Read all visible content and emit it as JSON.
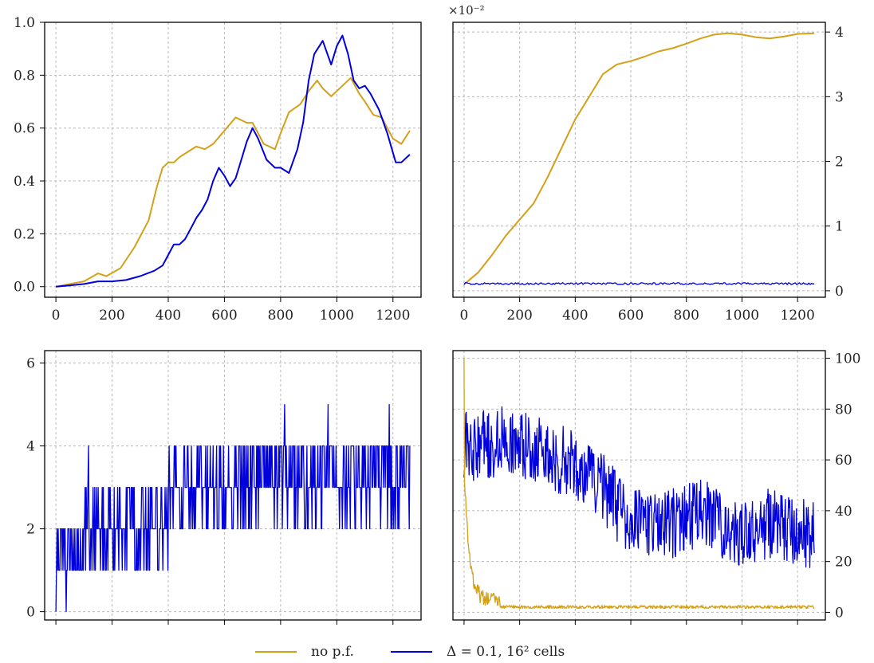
{
  "colors": {
    "no_pf": "#d4a017",
    "delta": "#0000dd"
  },
  "legend": {
    "no_pf": "no p.f.",
    "delta": "Δ = 0.1, 16² cells"
  },
  "chart_data": [
    {
      "type": "line",
      "panel": "top-left",
      "xlim": [
        -40,
        1300
      ],
      "ylim": [
        -0.04,
        1.0
      ],
      "xticks": [
        0,
        200,
        400,
        600,
        800,
        1000,
        1200
      ],
      "yticks": [
        0.0,
        0.2,
        0.4,
        0.6,
        0.8,
        1.0
      ],
      "ytick_labels": [
        "0.0",
        "0.2",
        "0.4",
        "0.6",
        "0.8",
        "1.0"
      ],
      "yaxis_side": "left",
      "grid": true,
      "series": [
        {
          "name": "no p.f.",
          "color_key": "no_pf",
          "x": [
            0,
            50,
            100,
            150,
            180,
            230,
            280,
            330,
            360,
            380,
            400,
            420,
            440,
            470,
            500,
            530,
            560,
            600,
            640,
            680,
            700,
            740,
            780,
            800,
            830,
            870,
            900,
            930,
            950,
            980,
            1000,
            1030,
            1050,
            1080,
            1100,
            1130,
            1160,
            1200,
            1230,
            1260
          ],
          "y": [
            0.0,
            0.01,
            0.02,
            0.05,
            0.04,
            0.07,
            0.15,
            0.25,
            0.38,
            0.45,
            0.47,
            0.47,
            0.49,
            0.51,
            0.53,
            0.52,
            0.54,
            0.59,
            0.64,
            0.62,
            0.62,
            0.54,
            0.52,
            0.58,
            0.66,
            0.69,
            0.74,
            0.78,
            0.75,
            0.72,
            0.74,
            0.77,
            0.79,
            0.73,
            0.7,
            0.65,
            0.64,
            0.56,
            0.54,
            0.59
          ]
        },
        {
          "name": "Δ = 0.1, 16² cells",
          "color_key": "delta",
          "x": [
            0,
            50,
            100,
            150,
            200,
            250,
            300,
            350,
            380,
            400,
            420,
            440,
            460,
            480,
            500,
            520,
            540,
            560,
            580,
            600,
            620,
            640,
            660,
            680,
            700,
            720,
            750,
            780,
            800,
            830,
            860,
            880,
            900,
            920,
            950,
            980,
            1000,
            1020,
            1040,
            1060,
            1080,
            1100,
            1120,
            1150,
            1180,
            1210,
            1230,
            1260
          ],
          "y": [
            0.0,
            0.005,
            0.01,
            0.02,
            0.02,
            0.025,
            0.04,
            0.06,
            0.08,
            0.12,
            0.16,
            0.16,
            0.18,
            0.22,
            0.26,
            0.29,
            0.33,
            0.4,
            0.45,
            0.42,
            0.38,
            0.41,
            0.48,
            0.55,
            0.6,
            0.56,
            0.48,
            0.45,
            0.45,
            0.43,
            0.52,
            0.62,
            0.78,
            0.88,
            0.93,
            0.84,
            0.91,
            0.95,
            0.88,
            0.78,
            0.75,
            0.76,
            0.73,
            0.67,
            0.58,
            0.47,
            0.47,
            0.5
          ]
        }
      ]
    },
    {
      "type": "line",
      "panel": "top-right",
      "xlim": [
        -40,
        1300
      ],
      "ylim": [
        -0.001,
        0.0415
      ],
      "xticks": [
        0,
        200,
        400,
        600,
        800,
        1000,
        1200
      ],
      "yticks": [
        0,
        0.01,
        0.02,
        0.03,
        0.04
      ],
      "ytick_labels": [
        "0",
        "1",
        "2",
        "3",
        "4"
      ],
      "yaxis_side": "right",
      "offset_text": "×10⁻²",
      "grid": true,
      "series": [
        {
          "name": "no p.f.",
          "color_key": "no_pf",
          "x": [
            0,
            50,
            100,
            150,
            200,
            250,
            300,
            350,
            400,
            450,
            500,
            550,
            600,
            650,
            700,
            750,
            800,
            850,
            900,
            950,
            1000,
            1050,
            1100,
            1150,
            1200,
            1260
          ],
          "y": [
            0.001,
            0.0028,
            0.0055,
            0.0085,
            0.011,
            0.0135,
            0.0175,
            0.022,
            0.0265,
            0.03,
            0.0335,
            0.035,
            0.0355,
            0.0362,
            0.037,
            0.0375,
            0.0382,
            0.039,
            0.0396,
            0.0398,
            0.0396,
            0.0392,
            0.039,
            0.0393,
            0.0397,
            0.0398
          ]
        },
        {
          "name": "Δ = 0.1, 16² cells",
          "color_key": "delta",
          "generator": "flat_noise",
          "base": 0.0011,
          "noise": 0.0003,
          "n": 260,
          "x_end": 1260
        }
      ]
    },
    {
      "type": "line",
      "panel": "bottom-left",
      "xlim": [
        -40,
        1300
      ],
      "ylim": [
        -0.2,
        6.3
      ],
      "yticks": [
        0,
        2,
        4,
        6
      ],
      "ytick_labels": [
        "0",
        "2",
        "4",
        "6"
      ],
      "yaxis_side": "left",
      "grid": true,
      "series": [
        {
          "name": "Δ = 0.1, 16² cells",
          "color_key": "delta",
          "generator": "step_noise",
          "n": 620,
          "x_end": 1260
        }
      ]
    },
    {
      "type": "line",
      "panel": "bottom-right",
      "xlim": [
        -40,
        1300
      ],
      "ylim": [
        -3,
        103
      ],
      "yticks": [
        0,
        20,
        40,
        60,
        80,
        100
      ],
      "ytick_labels": [
        "0",
        "20",
        "40",
        "60",
        "80",
        "100"
      ],
      "yaxis_side": "right",
      "grid": true,
      "series": [
        {
          "name": "Δ = 0.1, 16² cells",
          "color_key": "delta",
          "generator": "noisy_trend",
          "n": 630,
          "x_end": 1260,
          "trend_x": [
            0,
            150,
            300,
            450,
            600,
            700,
            850,
            1000,
            1100,
            1200,
            1260
          ],
          "trend_y": [
            65,
            68,
            62,
            55,
            35,
            33,
            40,
            30,
            35,
            30,
            32
          ],
          "noise": 14
        },
        {
          "name": "no p.f.",
          "color_key": "no_pf",
          "generator": "decay",
          "n": 630,
          "x_end": 1260,
          "start": 100,
          "floor": 1.5
        }
      ]
    }
  ]
}
